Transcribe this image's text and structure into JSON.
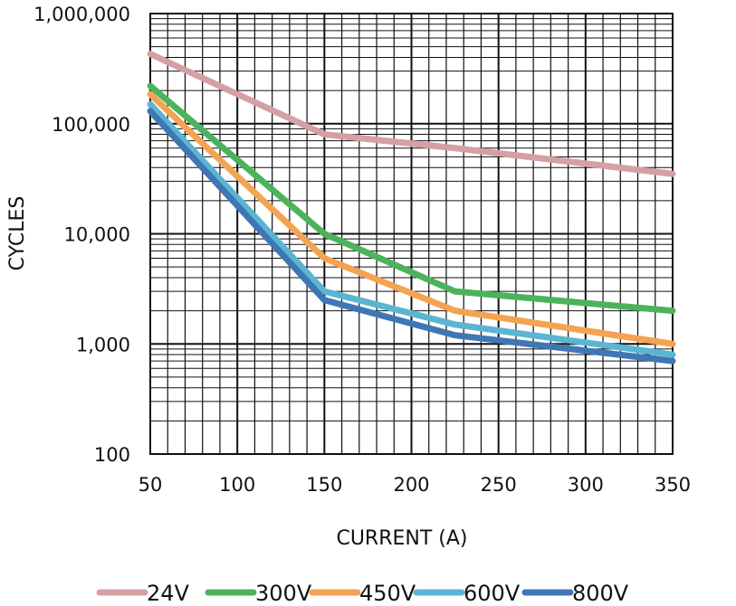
{
  "chart_data": {
    "type": "line",
    "title": "",
    "xlabel": "CURRENT (A)",
    "ylabel": "CYCLES",
    "xlim": [
      50,
      350
    ],
    "ylim": [
      100,
      1000000
    ],
    "yscale": "log",
    "grid": true,
    "legend_position": "bottom",
    "x_ticks": [
      "50",
      "100",
      "150",
      "200",
      "250",
      "300",
      "350"
    ],
    "y_ticks": [
      "100",
      "1,000",
      "10,000",
      "100,000",
      "1,000,000"
    ],
    "series": [
      {
        "name": "24V",
        "color": "#d4a0a4",
        "x": [
          50,
          150,
          225,
          350
        ],
        "values": [
          430000,
          80000,
          60000,
          35000
        ]
      },
      {
        "name": "300V",
        "color": "#4cb35c",
        "x": [
          50,
          150,
          225,
          350
        ],
        "values": [
          220000,
          10000,
          3000,
          2000
        ]
      },
      {
        "name": "450V",
        "color": "#f4a352",
        "x": [
          50,
          150,
          225,
          350
        ],
        "values": [
          185000,
          6000,
          2000,
          1000
        ]
      },
      {
        "name": "600V",
        "color": "#5bb5d2",
        "x": [
          50,
          150,
          225,
          350
        ],
        "values": [
          150000,
          3000,
          1500,
          800
        ]
      },
      {
        "name": "800V",
        "color": "#3f77b5",
        "x": [
          50,
          150,
          225,
          350
        ],
        "values": [
          130000,
          2500,
          1200,
          700
        ]
      }
    ]
  }
}
